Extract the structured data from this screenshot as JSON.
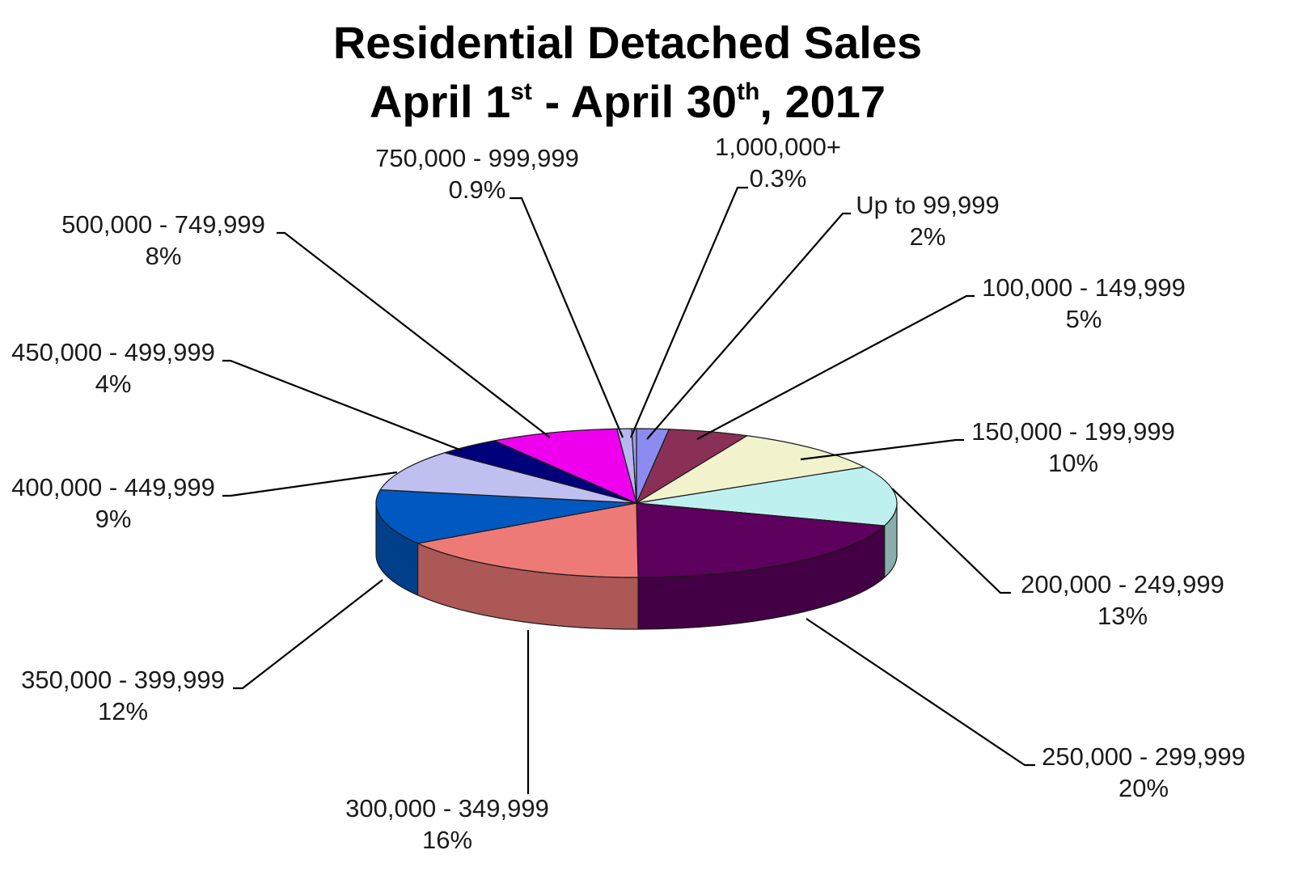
{
  "chart_data": {
    "type": "pie",
    "title": {
      "line1": "Residential Detached Sales",
      "line2_part1": "April 1",
      "line2_sup1": "st",
      "line2_part2": " - April 30",
      "line2_sup2": "th",
      "line2_part3": ", 2017"
    },
    "slices": [
      {
        "label": "Up to 99,999",
        "pct_text": "2%",
        "value": 2,
        "color": "#8c8cf0"
      },
      {
        "label": "100,000 - 149,999",
        "pct_text": "5%",
        "value": 5,
        "color": "#8a3057"
      },
      {
        "label": "150,000 - 199,999",
        "pct_text": "10%",
        "value": 10,
        "color": "#f2f2cc"
      },
      {
        "label": "200,000 - 249,999",
        "pct_text": "13%",
        "value": 13,
        "color": "#bff0f0"
      },
      {
        "label": "250,000 - 299,999",
        "pct_text": "20%",
        "value": 20,
        "color": "#5e005e"
      },
      {
        "label": "300,000 - 349,999",
        "pct_text": "16%",
        "value": 16,
        "color": "#ee7a77"
      },
      {
        "label": "350,000 - 399,999",
        "pct_text": "12%",
        "value": 12,
        "color": "#0058c0"
      },
      {
        "label": "400,000 - 449,999",
        "pct_text": "9%",
        "value": 9,
        "color": "#c0c0f0"
      },
      {
        "label": "450,000 - 499,999",
        "pct_text": "4%",
        "value": 4,
        "color": "#00007a"
      },
      {
        "label": "500,000 - 749,999",
        "pct_text": "8%",
        "value": 8,
        "color": "#ee00ee"
      },
      {
        "label": "750,000 - 999,999",
        "pct_text": "0.9%",
        "value": 0.9,
        "color": "#b8b8f0"
      },
      {
        "label": "1,000,000+",
        "pct_text": "0.3%",
        "value": 0.3,
        "color": "#9a9af0"
      }
    ],
    "start_angle_deg": -90,
    "direction": "clockwise",
    "legend": "none",
    "style": "3d-pie"
  }
}
